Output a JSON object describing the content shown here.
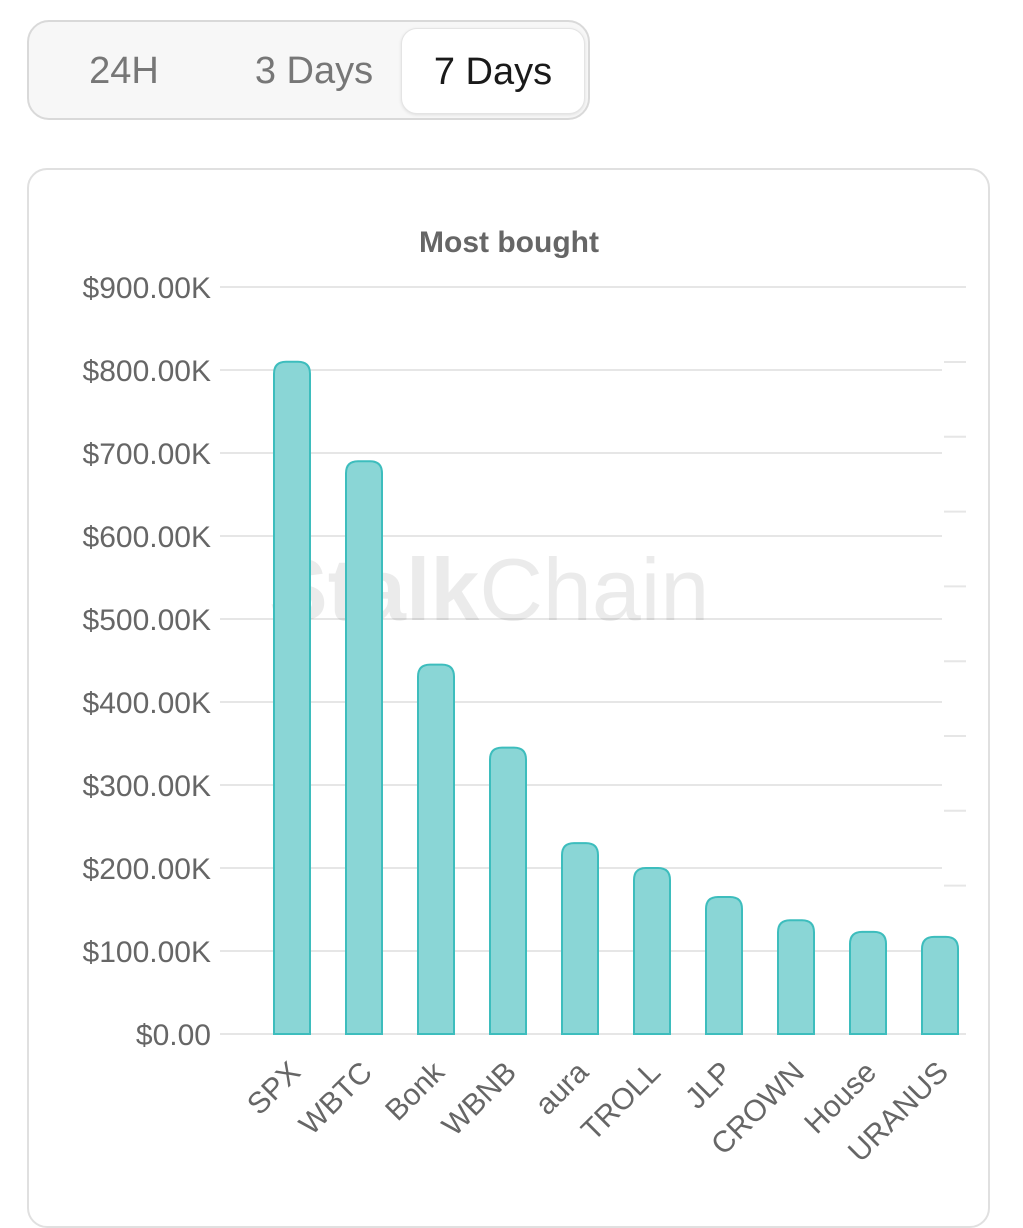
{
  "tabs": [
    {
      "label": "24H"
    },
    {
      "label": "3 Days"
    },
    {
      "label": "7 Days",
      "active": true
    }
  ],
  "watermark": {
    "bold": "Stalk",
    "regular": "Chain"
  },
  "colors": {
    "bar_fill": "#8ad6d6",
    "bar_stroke": "#3dbdbd",
    "grid": "#e6e6e6",
    "title": "#666666",
    "tick": "#666666"
  },
  "chart_data": {
    "type": "bar",
    "title": "Most bought",
    "xlabel": "",
    "ylabel": "",
    "categories": [
      "SPX",
      "WBTC",
      "Bonk",
      "WBNB",
      "aura",
      "TROLL",
      "JLP",
      "CROWN",
      "House",
      "URANUS"
    ],
    "values": [
      810000,
      690000,
      445000,
      345000,
      230000,
      200000,
      165000,
      137000,
      123000,
      117000
    ],
    "ylim": [
      0,
      900000
    ],
    "yticks": [
      {
        "value": 0,
        "label": "$0.00"
      },
      {
        "value": 100000,
        "label": "$100.00K"
      },
      {
        "value": 200000,
        "label": "$200.00K"
      },
      {
        "value": 300000,
        "label": "$300.00K"
      },
      {
        "value": 400000,
        "label": "$400.00K"
      },
      {
        "value": 500000,
        "label": "$500.00K"
      },
      {
        "value": 600000,
        "label": "$600.00K"
      },
      {
        "value": 700000,
        "label": "$700.00K"
      },
      {
        "value": 800000,
        "label": "$800.00K"
      },
      {
        "value": 900000,
        "label": "$900.00K"
      }
    ],
    "grid": true,
    "legend": "none"
  }
}
